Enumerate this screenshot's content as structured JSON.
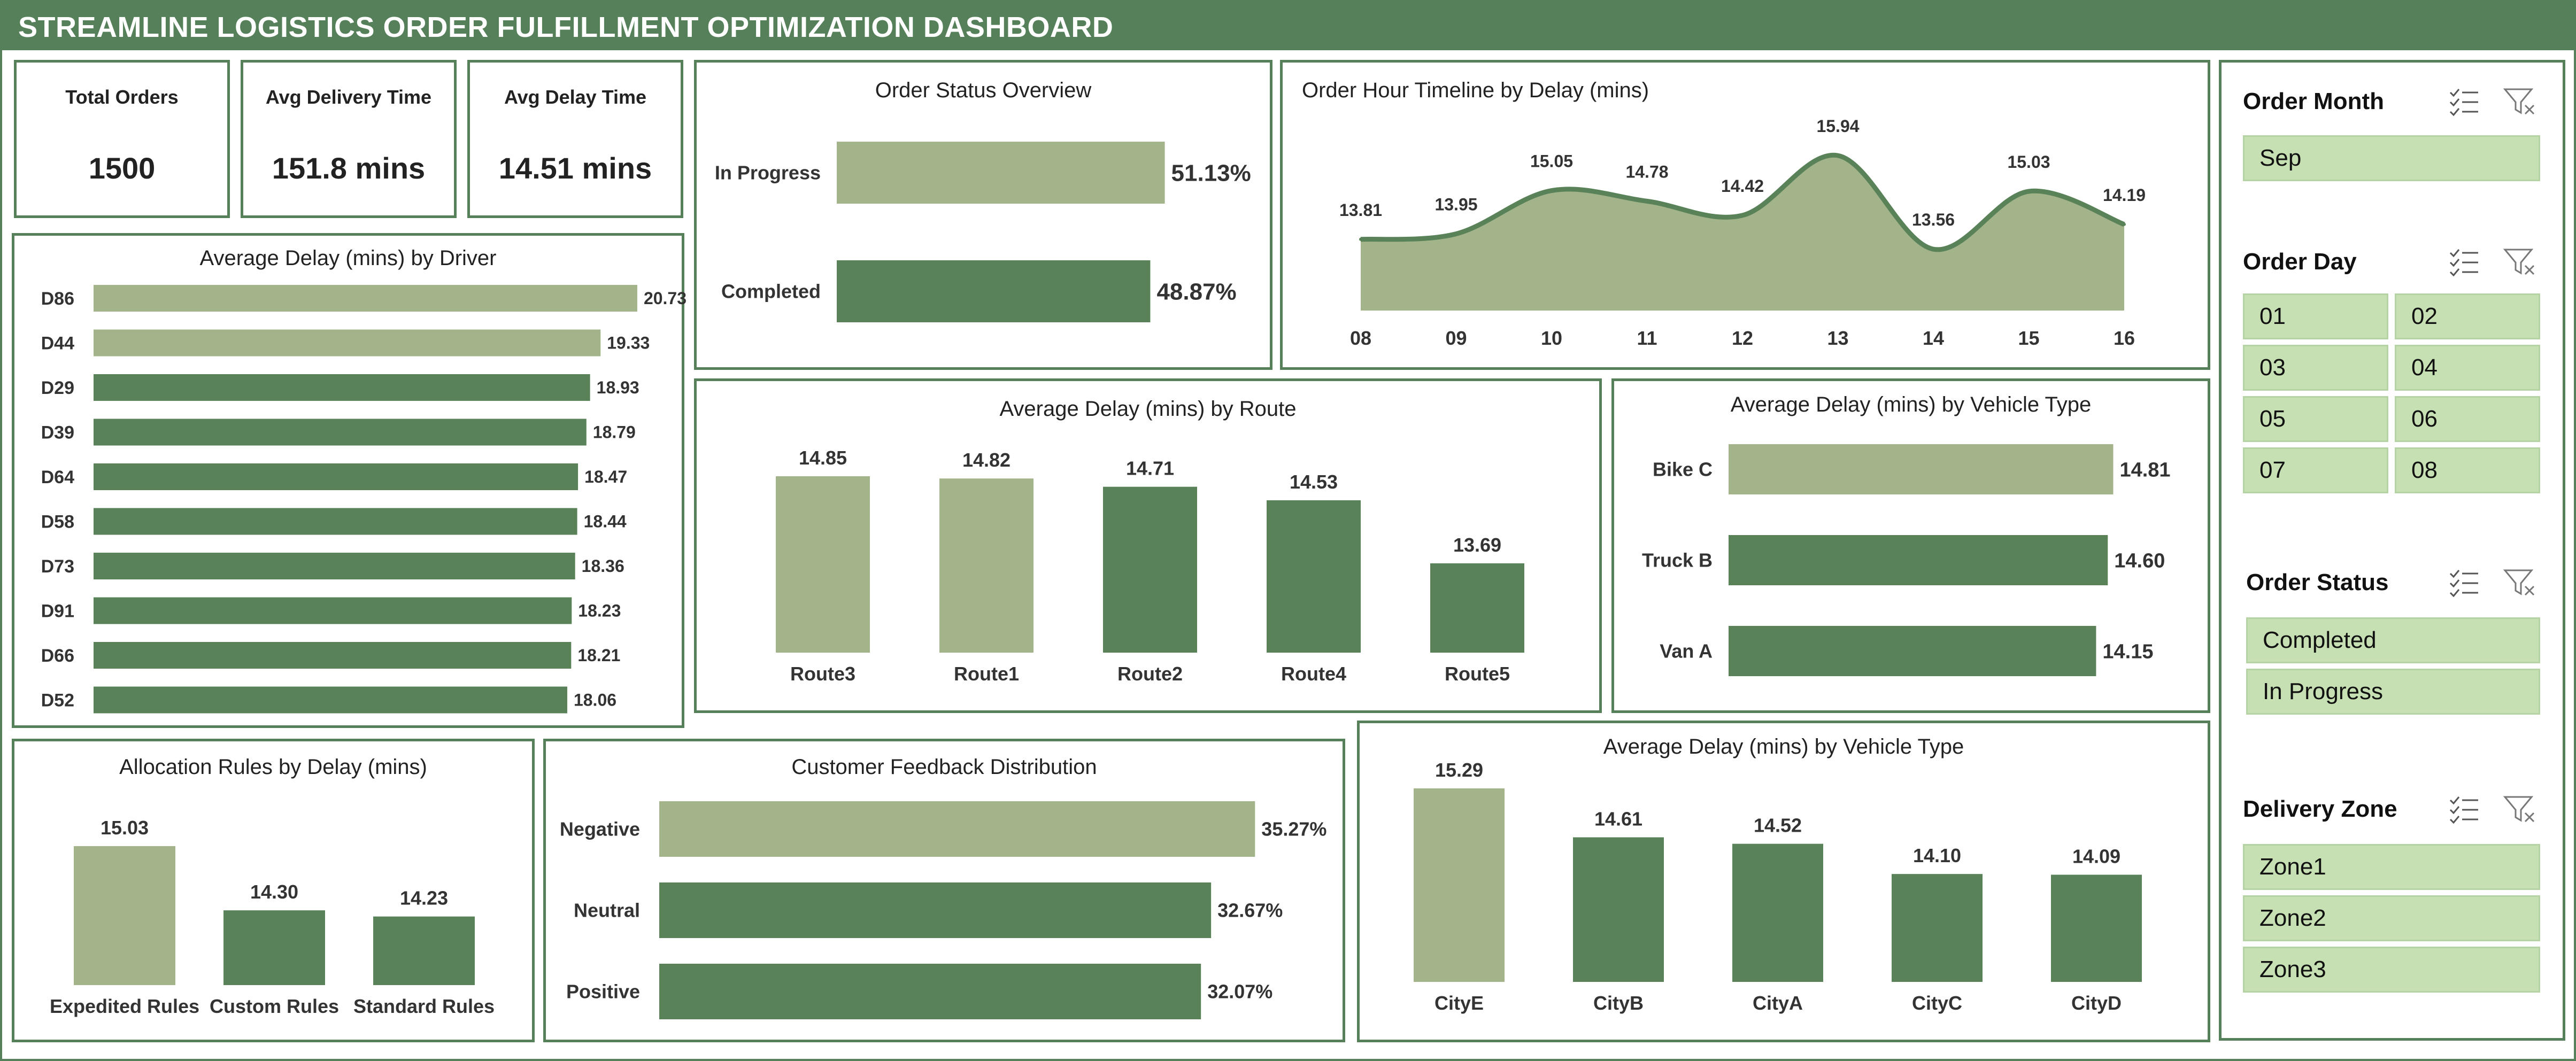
{
  "header": {
    "title": "STREAMLINE LOGISTICS ORDER FULFILLMENT OPTIMIZATION DASHBOARD"
  },
  "kpis": [
    {
      "label": "Total Orders",
      "value": "1500"
    },
    {
      "label": "Avg Delivery Time",
      "value": "151.8 mins"
    },
    {
      "label": "Avg Delay Time",
      "value": "14.51 mins"
    }
  ],
  "colors": {
    "dark_green": "#5a8259",
    "light_green": "#a3b38a",
    "slicer_fill": "#c6e0b4",
    "border": "#55805a"
  },
  "chart_data": [
    {
      "id": "order-status",
      "type": "bar",
      "orientation": "horizontal",
      "title": "Order Status Overview",
      "categories": [
        "In Progress",
        "Completed"
      ],
      "values": [
        51.13,
        48.87
      ],
      "labels": [
        "51.13%",
        "48.87%"
      ],
      "highlight": [
        true,
        false
      ]
    },
    {
      "id": "hour-timeline",
      "type": "area",
      "title": "Order Hour Timeline by Delay (mins)",
      "categories": [
        "08",
        "09",
        "10",
        "11",
        "12",
        "13",
        "14",
        "15",
        "16"
      ],
      "values": [
        13.81,
        13.95,
        15.05,
        14.78,
        14.42,
        15.94,
        13.56,
        15.03,
        14.19
      ],
      "labels": [
        "13.81",
        "13.95",
        "15.05",
        "14.78",
        "14.42",
        "15.94",
        "13.56",
        "15.03",
        "14.19"
      ]
    },
    {
      "id": "driver-delay",
      "type": "bar",
      "orientation": "horizontal",
      "title": "Average Delay (mins) by Driver",
      "categories": [
        "D86",
        "D44",
        "D29",
        "D39",
        "D64",
        "D58",
        "D73",
        "D91",
        "D66",
        "D52"
      ],
      "values": [
        20.73,
        19.33,
        18.93,
        18.79,
        18.47,
        18.44,
        18.36,
        18.23,
        18.21,
        18.06
      ],
      "labels": [
        "20.73",
        "19.33",
        "18.93",
        "18.79",
        "18.47",
        "18.44",
        "18.36",
        "18.23",
        "18.21",
        "18.06"
      ],
      "highlight": [
        true,
        true,
        false,
        false,
        false,
        false,
        false,
        false,
        false,
        false
      ]
    },
    {
      "id": "route-delay",
      "type": "bar",
      "title": "Average Delay (mins) by Route",
      "categories": [
        "Route3",
        "Route1",
        "Route2",
        "Route4",
        "Route5"
      ],
      "values": [
        14.85,
        14.82,
        14.71,
        14.53,
        13.69
      ],
      "labels": [
        "14.85",
        "14.82",
        "14.71",
        "14.53",
        "13.69"
      ],
      "highlight": [
        true,
        true,
        false,
        false,
        false
      ]
    },
    {
      "id": "vehicle-delay",
      "type": "bar",
      "orientation": "horizontal",
      "title": "Average Delay (mins) by Vehicle Type",
      "categories": [
        "Bike C",
        "Truck B",
        "Van A"
      ],
      "values": [
        14.81,
        14.6,
        14.15
      ],
      "labels": [
        "14.81",
        "14.60",
        "14.15"
      ],
      "highlight": [
        true,
        false,
        false
      ]
    },
    {
      "id": "allocation-rules",
      "type": "bar",
      "title": "Allocation Rules by Delay (mins)",
      "categories": [
        "Expedited Rules",
        "Custom Rules",
        "Standard Rules"
      ],
      "values": [
        15.03,
        14.3,
        14.23
      ],
      "labels": [
        "15.03",
        "14.30",
        "14.23"
      ],
      "highlight": [
        true,
        false,
        false
      ]
    },
    {
      "id": "feedback",
      "type": "bar",
      "orientation": "horizontal",
      "title": "Customer Feedback Distribution",
      "categories": [
        "Negative",
        "Neutral",
        "Positive"
      ],
      "values": [
        35.27,
        32.67,
        32.07
      ],
      "labels": [
        "35.27%",
        "32.67%",
        "32.07%"
      ],
      "highlight": [
        true,
        false,
        false
      ]
    },
    {
      "id": "city-delay",
      "type": "bar",
      "title": "Average Delay (mins) by Vehicle Type",
      "categories": [
        "CityE",
        "CityB",
        "CityA",
        "CityC",
        "CityD"
      ],
      "values": [
        15.29,
        14.61,
        14.52,
        14.1,
        14.09
      ],
      "labels": [
        "15.29",
        "14.61",
        "14.52",
        "14.10",
        "14.09"
      ],
      "highlight": [
        true,
        false,
        false,
        false,
        false
      ]
    }
  ],
  "slicers": [
    {
      "title": "Order Month",
      "items": [
        "Sep"
      ]
    },
    {
      "title": "Order Day",
      "items": [
        "01",
        "02",
        "03",
        "04",
        "05",
        "06",
        "07",
        "08"
      ]
    },
    {
      "title": "Order Status",
      "items": [
        "Completed",
        "In Progress"
      ]
    },
    {
      "title": "Delivery Zone",
      "items": [
        "Zone1",
        "Zone2",
        "Zone3"
      ]
    }
  ],
  "slicer_icons": {
    "multi_select": "multi-select-icon",
    "clear_filter": "clear-filter-icon"
  }
}
